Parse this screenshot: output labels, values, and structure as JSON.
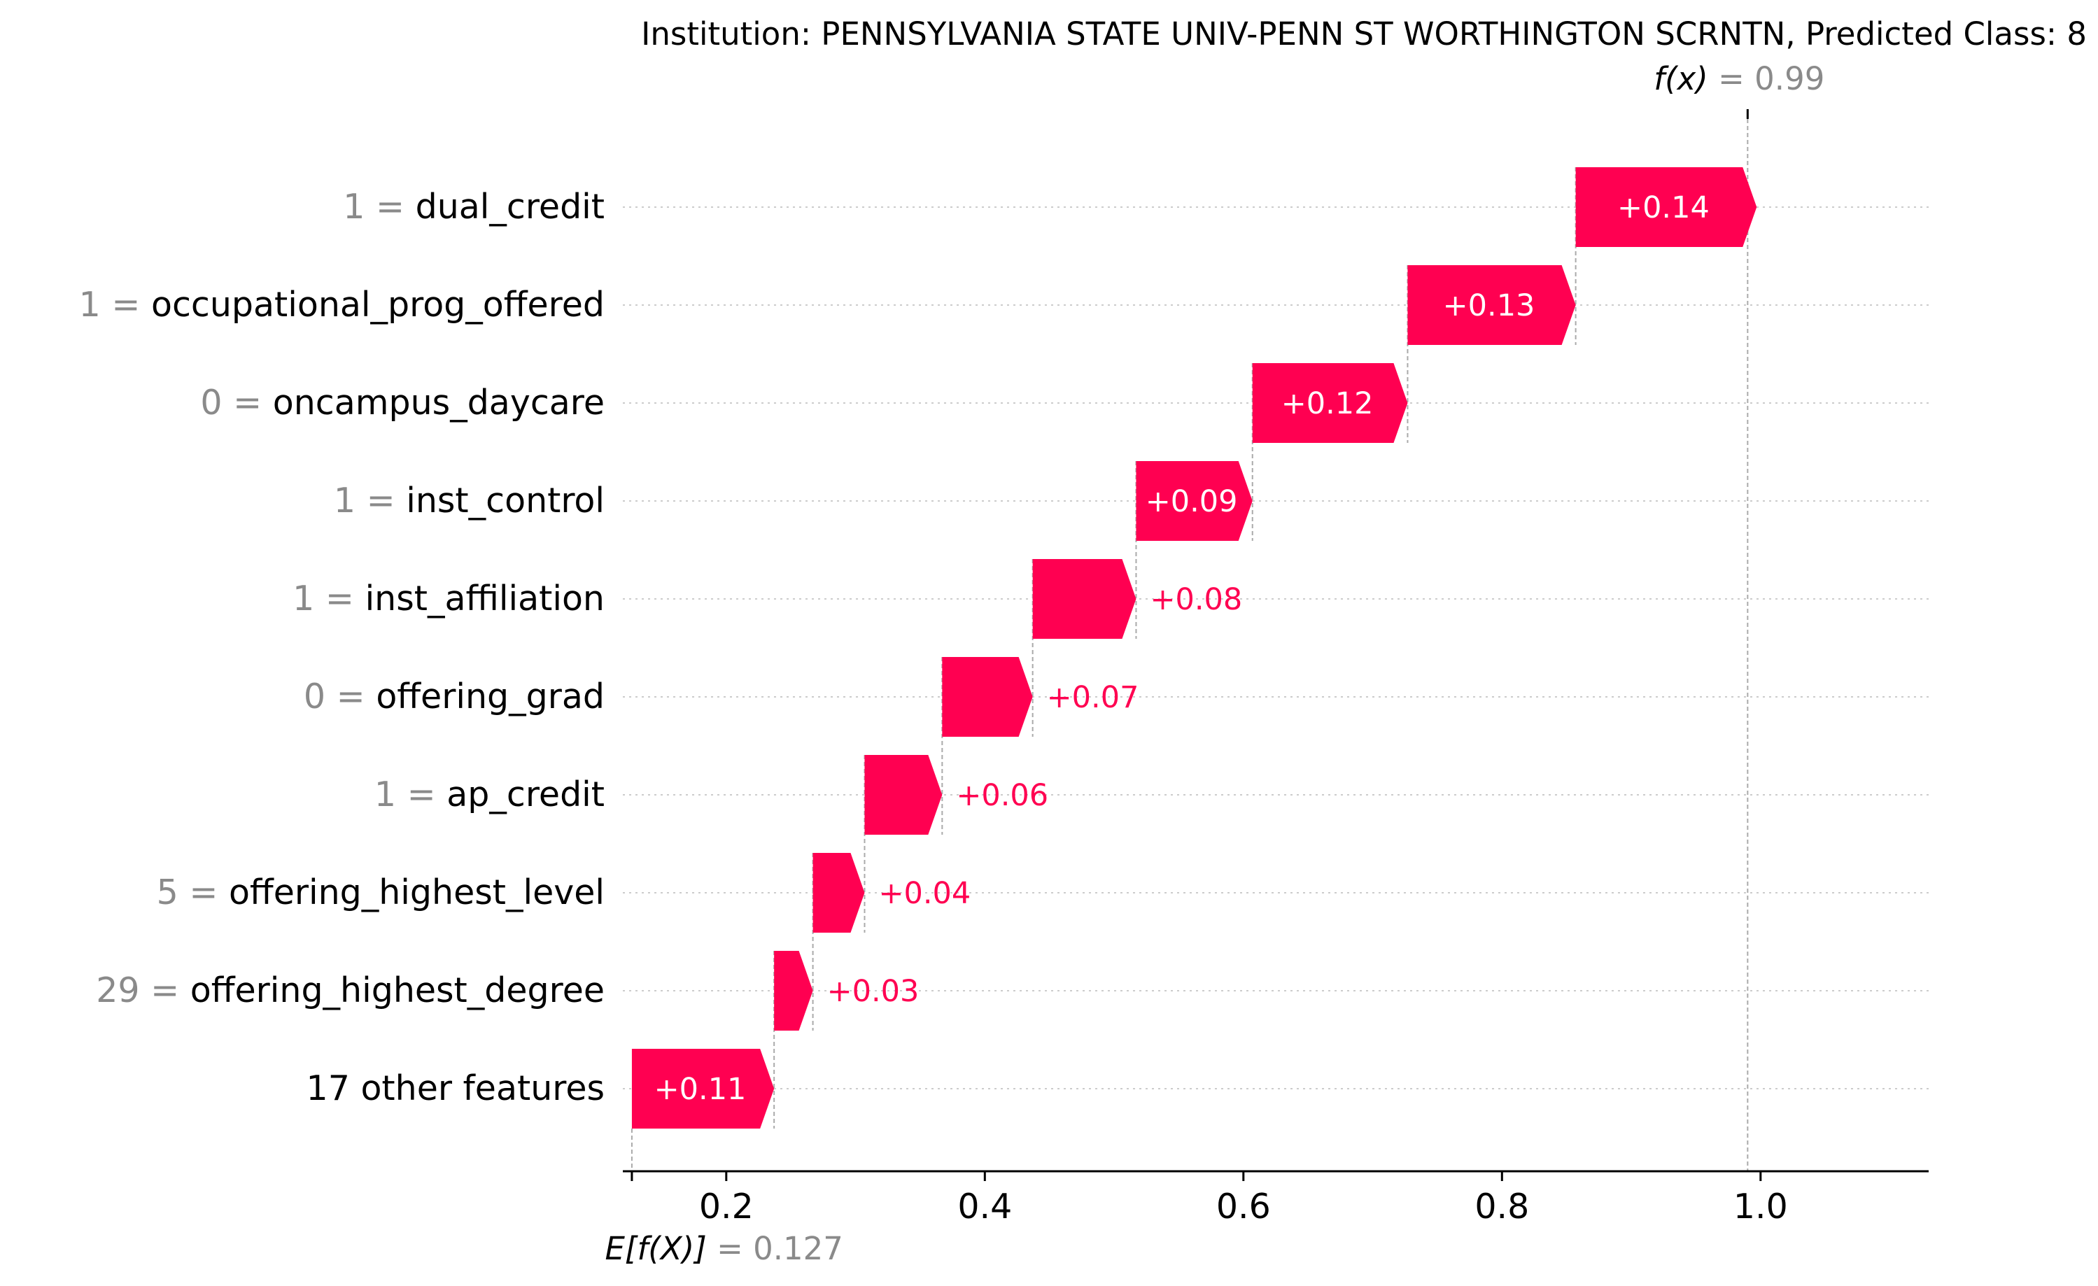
{
  "title": "Institution: PENNSYLVANIA STATE UNIV-PENN ST WORTHINGTON SCRNTN, Predicted Class: 8",
  "colors": {
    "positive": "#ff0051",
    "bar_text_inside": "#ffffff",
    "value_gray": "#8a8a8a",
    "label_text": "#000000",
    "grid": "#cccccc",
    "guide": "#aaaaaa"
  },
  "chart_data": {
    "type": "waterfall",
    "base_value": 0.127,
    "output_value": 0.99,
    "base_label": "E[f(X)]",
    "base_value_text": "0.127",
    "output_label": "f(x)",
    "output_value_text": "0.99",
    "xlim": [
      0.12,
      1.13
    ],
    "xticks": [
      0.2,
      0.4,
      0.6,
      0.8,
      1.0
    ],
    "xtick_labels": [
      "0.2",
      "0.4",
      "0.6",
      "0.8",
      "1.0"
    ],
    "features": [
      {
        "value": "1",
        "name": "dual_credit",
        "shap": 0.14,
        "label": "+0.14"
      },
      {
        "value": "1",
        "name": "occupational_prog_offered",
        "shap": 0.13,
        "label": "+0.13"
      },
      {
        "value": "0",
        "name": "oncampus_daycare",
        "shap": 0.12,
        "label": "+0.12"
      },
      {
        "value": "1",
        "name": "inst_control",
        "shap": 0.09,
        "label": "+0.09"
      },
      {
        "value": "1",
        "name": "inst_affiliation",
        "shap": 0.08,
        "label": "+0.08"
      },
      {
        "value": "0",
        "name": "offering_grad",
        "shap": 0.07,
        "label": "+0.07"
      },
      {
        "value": "1",
        "name": "ap_credit",
        "shap": 0.06,
        "label": "+0.06"
      },
      {
        "value": "5",
        "name": "offering_highest_level",
        "shap": 0.04,
        "label": "+0.04"
      },
      {
        "value": "29",
        "name": "offering_highest_degree",
        "shap": 0.03,
        "label": "+0.03"
      },
      {
        "value": "",
        "name": "17 other features",
        "shap": 0.11,
        "label": "+0.11"
      }
    ]
  }
}
